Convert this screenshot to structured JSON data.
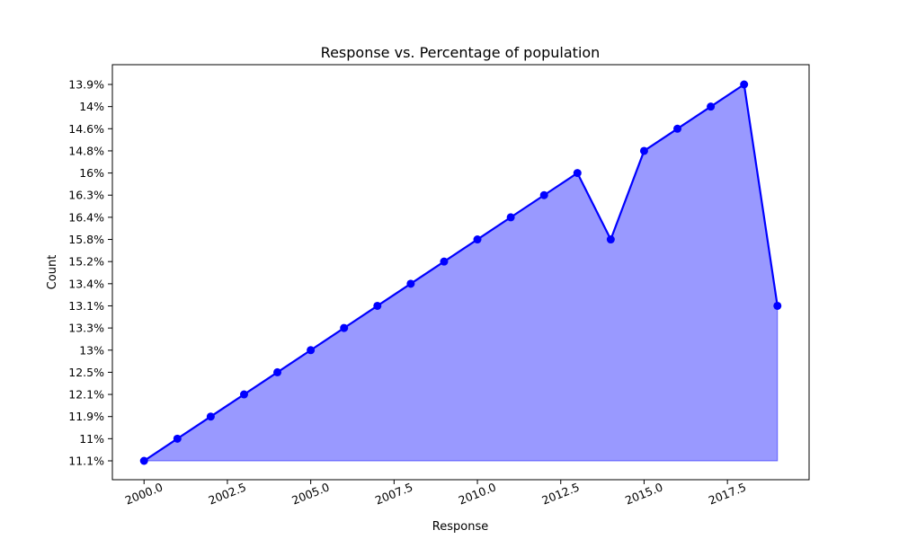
{
  "chart_data": {
    "type": "area",
    "title": "Response vs. Percentage of population",
    "xlabel": "Response",
    "ylabel": "Count",
    "x": [
      2000,
      2001,
      2002,
      2003,
      2004,
      2005,
      2006,
      2007,
      2008,
      2009,
      2010,
      2011,
      2012,
      2013,
      2014,
      2015,
      2016,
      2017,
      2018,
      2019
    ],
    "y": [
      "11.1%",
      "11%",
      "11.9%",
      "12.1%",
      "12.5%",
      "13%",
      "13.3%",
      "13.1%",
      "13.4%",
      "15.2%",
      "15.8%",
      "16.4%",
      "16.3%",
      "16%",
      "15.8%",
      "14.8%",
      "14.6%",
      "14%",
      "13.9%",
      "13.1%"
    ],
    "y_categories": [
      "11.1%",
      "11%",
      "11.9%",
      "12.1%",
      "12.5%",
      "13%",
      "13.3%",
      "13.1%",
      "13.4%",
      "15.2%",
      "15.8%",
      "16.4%",
      "16.3%",
      "16%",
      "14.8%",
      "14.6%",
      "14%",
      "13.9%"
    ],
    "x_ticks": [
      2000.0,
      2002.5,
      2005.0,
      2007.5,
      2010.0,
      2012.5,
      2015.0,
      2017.5
    ],
    "x_tick_labels": [
      "2000.0",
      "2002.5",
      "2005.0",
      "2007.5",
      "2010.0",
      "2012.5",
      "2015.0",
      "2017.5"
    ],
    "xlim": [
      1999.05,
      2019.95
    ],
    "grid": false,
    "colors": {
      "line": "#0000ff",
      "fill": "#9999ff",
      "marker": "#0000ff"
    }
  }
}
